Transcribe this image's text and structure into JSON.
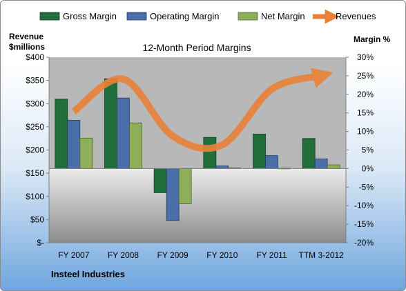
{
  "chart_data": {
    "type": "bar",
    "title": "12-Month Period Margins",
    "company": "Insteel Industries",
    "left_axis_label_lines": [
      "Revenue",
      "$millions"
    ],
    "right_axis_label": "Margin %",
    "categories": [
      "FY 2007",
      "FY 2008",
      "FY 2009",
      "FY 2010",
      "FY 2011",
      "TTM 3-2012"
    ],
    "left_ylim": [
      0,
      400
    ],
    "left_ticks": [
      0,
      50,
      100,
      150,
      200,
      250,
      300,
      350,
      400
    ],
    "left_tick_labels": [
      "$-",
      "$50",
      "$100",
      "$150",
      "$200",
      "$250",
      "$300",
      "$350",
      "$400"
    ],
    "right_ylim": [
      -20,
      30
    ],
    "right_ticks": [
      -20,
      -15,
      -10,
      -5,
      0,
      5,
      10,
      15,
      20,
      25,
      30
    ],
    "right_tick_labels": [
      "-20%",
      "-15%",
      "-10%",
      "-5%",
      "0%",
      "5%",
      "10%",
      "15%",
      "20%",
      "25%",
      "30%"
    ],
    "series": [
      {
        "name": "Gross Margin",
        "axis": "right",
        "unit": "%",
        "color": "#1f6e3c",
        "values": [
          18.7,
          24.2,
          -6.5,
          8.4,
          9.3,
          8.1
        ]
      },
      {
        "name": "Operating Margin",
        "axis": "right",
        "unit": "%",
        "color": "#4a6ea9",
        "values": [
          13.0,
          19.0,
          -14.0,
          0.7,
          3.5,
          2.6
        ]
      },
      {
        "name": "Net Margin",
        "axis": "right",
        "unit": "%",
        "color": "#8fae5a",
        "values": [
          8.2,
          12.3,
          -9.5,
          0.2,
          0.1,
          1.0
        ]
      },
      {
        "name": "Revenues",
        "axis": "left",
        "unit": "$M",
        "color": "#e8823a",
        "values": [
          283,
          353,
          230,
          211,
          331,
          360
        ]
      }
    ],
    "grid": false,
    "legend_position": "top"
  }
}
